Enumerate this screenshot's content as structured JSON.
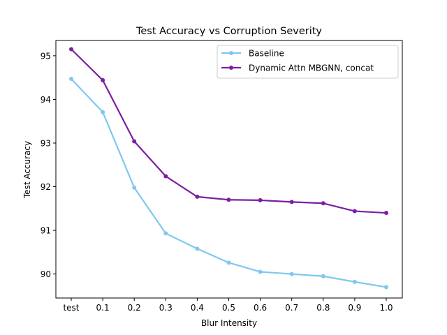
{
  "chart_data": {
    "type": "line",
    "title": "Test Accuracy vs Corruption Severity",
    "xlabel": "Blur Intensity",
    "ylabel": "Test Accuracy",
    "categories": [
      "test",
      "0.1",
      "0.2",
      "0.3",
      "0.4",
      "0.5",
      "0.6",
      "0.7",
      "0.8",
      "0.9",
      "1.0"
    ],
    "ylim": [
      89.45,
      95.35
    ],
    "yticks": [
      90,
      91,
      92,
      93,
      94,
      95
    ],
    "grid": false,
    "legend_position": "top-right",
    "series": [
      {
        "name": "Baseline",
        "color": "#7fc8f0",
        "values": [
          94.47,
          93.71,
          91.98,
          90.93,
          90.58,
          90.26,
          90.05,
          90.0,
          89.95,
          89.82,
          89.7
        ]
      },
      {
        "name": "Dynamic Attn MBGNN, concat",
        "color": "#7b1fa2",
        "values": [
          95.15,
          94.44,
          93.04,
          92.24,
          91.77,
          91.7,
          91.69,
          91.65,
          91.62,
          91.44,
          91.4
        ]
      }
    ]
  }
}
